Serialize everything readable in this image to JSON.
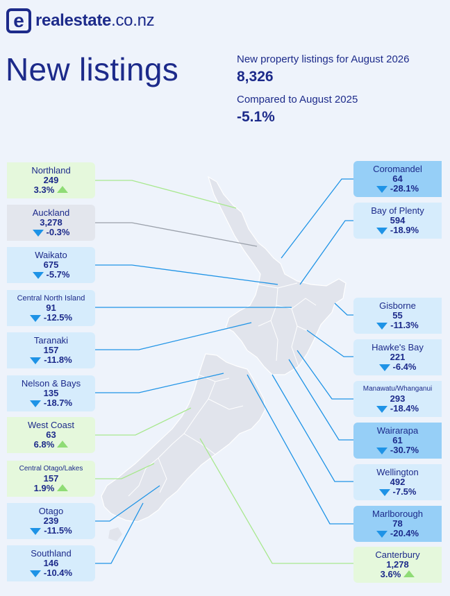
{
  "brand": {
    "name_bold": "realestate",
    "name_suffix": ".co.nz",
    "mark": "e"
  },
  "title": "New listings",
  "summary": {
    "listings_label": "New property listings for August 2026",
    "listings_value": "8,326",
    "compare_label": "Compared to August 2025",
    "compare_value": "-5.1%"
  },
  "colors": {
    "navy": "#1c2a8a",
    "up_fill": "#e5f8dc",
    "down_fill": "#d6ecfc",
    "down_strong_fill": "#96cff7",
    "flat_fill": "#e3e6ed",
    "arrow_down": "#1e93e6",
    "arrow_up": "#8fdc75",
    "line_up": "#a8e88e",
    "line_down": "#1e93e6",
    "line_flat": "#9aa0aa",
    "map_fill": "#e1e4ec"
  },
  "regions": {
    "northland": {
      "name": "Northland",
      "count": "249",
      "change": "3.3%",
      "trend": "up",
      "icon": "arrow-up-icon"
    },
    "auckland": {
      "name": "Auckland",
      "count": "3,278",
      "change": "-0.3%",
      "trend": "flat",
      "icon": "arrow-down-icon"
    },
    "waikato": {
      "name": "Waikato",
      "count": "675",
      "change": "-5.7%",
      "trend": "down",
      "icon": "arrow-down-icon"
    },
    "central_north_island": {
      "name": "Central North Island",
      "count": "91",
      "change": "-12.5%",
      "trend": "down",
      "icon": "arrow-down-icon"
    },
    "taranaki": {
      "name": "Taranaki",
      "count": "157",
      "change": "-11.8%",
      "trend": "down",
      "icon": "arrow-down-icon"
    },
    "nelson_bays": {
      "name": "Nelson & Bays",
      "count": "135",
      "change": "-18.7%",
      "trend": "down",
      "icon": "arrow-down-icon"
    },
    "west_coast": {
      "name": "West Coast",
      "count": "63",
      "change": "6.8%",
      "trend": "up",
      "icon": "arrow-up-icon"
    },
    "central_otago_lakes": {
      "name": "Central Otago/Lakes",
      "count": "157",
      "change": "1.9%",
      "trend": "up",
      "icon": "arrow-up-icon"
    },
    "otago": {
      "name": "Otago",
      "count": "239",
      "change": "-11.5%",
      "trend": "down",
      "icon": "arrow-down-icon"
    },
    "southland": {
      "name": "Southland",
      "count": "146",
      "change": "-10.4%",
      "trend": "down",
      "icon": "arrow-down-icon"
    },
    "coromandel": {
      "name": "Coromandel",
      "count": "64",
      "change": "-28.1%",
      "trend": "down",
      "icon": "arrow-down-icon"
    },
    "bay_of_plenty": {
      "name": "Bay of Plenty",
      "count": "594",
      "change": "-18.9%",
      "trend": "down",
      "icon": "arrow-down-icon"
    },
    "gisborne": {
      "name": "Gisborne",
      "count": "55",
      "change": "-11.3%",
      "trend": "down",
      "icon": "arrow-down-icon"
    },
    "hawkes_bay": {
      "name": "Hawke's Bay",
      "count": "221",
      "change": "-6.4%",
      "trend": "down",
      "icon": "arrow-down-icon"
    },
    "manawatu_whanganui": {
      "name": "Manawatu/Whanganui",
      "count": "293",
      "change": "-18.4%",
      "trend": "down",
      "icon": "arrow-down-icon"
    },
    "wairarapa": {
      "name": "Wairarapa",
      "count": "61",
      "change": "-30.7%",
      "trend": "down",
      "icon": "arrow-down-icon"
    },
    "wellington": {
      "name": "Wellington",
      "count": "492",
      "change": "-7.5%",
      "trend": "down",
      "icon": "arrow-down-icon"
    },
    "marlborough": {
      "name": "Marlborough",
      "count": "78",
      "change": "-20.4%",
      "trend": "down",
      "icon": "arrow-down-icon"
    },
    "canterbury": {
      "name": "Canterbury",
      "count": "1,278",
      "change": "3.6%",
      "trend": "up",
      "icon": "arrow-up-icon"
    }
  }
}
